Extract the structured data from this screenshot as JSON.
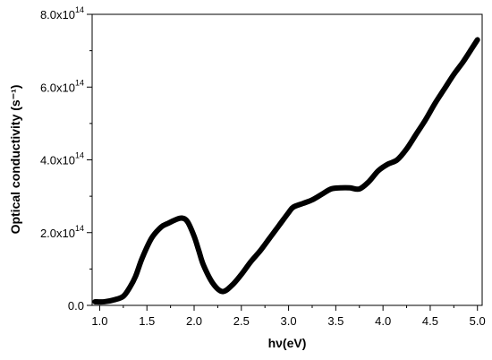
{
  "chart_data": {
    "type": "line",
    "xlabel": "hν(eV)",
    "ylabel": "Optical conductivity (s⁻¹)",
    "xlim": [
      0.92,
      5.05
    ],
    "ylim": [
      0,
      800000000000000.0
    ],
    "x_ticks": [
      1.0,
      1.5,
      2.0,
      2.5,
      3.0,
      3.5,
      4.0,
      4.5,
      5.0
    ],
    "x_tick_labels": [
      "1.0",
      "1.5",
      "2.0",
      "2.5",
      "3.0",
      "3.5",
      "4.0",
      "4.5",
      "5.0"
    ],
    "y_ticks": [
      0,
      200000000000000.0,
      400000000000000.0,
      600000000000000.0,
      800000000000000.0
    ],
    "y_tick_labels": [
      {
        "mantissa": "0.0",
        "exponent": ""
      },
      {
        "mantissa": "2.0x10",
        "exponent": "14"
      },
      {
        "mantissa": "4.0x10",
        "exponent": "14"
      },
      {
        "mantissa": "6.0x10",
        "exponent": "14"
      },
      {
        "mantissa": "8.0x10",
        "exponent": "14"
      }
    ],
    "grid": false,
    "legend": "none",
    "line_color": "#000000",
    "series": [
      {
        "x": [
          0.95,
          1.05,
          1.15,
          1.25,
          1.32,
          1.38,
          1.45,
          1.55,
          1.65,
          1.72,
          1.8,
          1.87,
          1.93,
          2.0,
          2.05,
          2.1,
          2.2,
          2.3,
          2.4,
          2.5,
          2.6,
          2.7,
          2.8,
          2.9,
          3.0,
          3.05,
          3.15,
          3.25,
          3.35,
          3.45,
          3.55,
          3.65,
          3.75,
          3.85,
          3.95,
          4.05,
          4.15,
          4.25,
          4.35,
          4.45,
          4.55,
          4.65,
          4.75,
          4.85,
          4.95,
          5.0
        ],
        "y": [
          10000000000000.0,
          10000000000000.0,
          15000000000000.0,
          25000000000000.0,
          50000000000000.0,
          80000000000000.0,
          130000000000000.0,
          185000000000000.0,
          215000000000000.0,
          225000000000000.0,
          235000000000000.0,
          240000000000000.0,
          230000000000000.0,
          190000000000000.0,
          150000000000000.0,
          110000000000000.0,
          60000000000000.0,
          38000000000000.0,
          55000000000000.0,
          85000000000000.0,
          120000000000000.0,
          150000000000000.0,
          185000000000000.0,
          220000000000000.0,
          255000000000000.0,
          270000000000000.0,
          280000000000000.0,
          290000000000000.0,
          305000000000000.0,
          320000000000000.0,
          323000000000000.0,
          323000000000000.0,
          320000000000000.0,
          340000000000000.0,
          370000000000000.0,
          388000000000000.0,
          400000000000000.0,
          430000000000000.0,
          470000000000000.0,
          510000000000000.0,
          555000000000000.0,
          595000000000000.0,
          635000000000000.0,
          670000000000000.0,
          710000000000000.0,
          730000000000000.0
        ]
      }
    ]
  }
}
